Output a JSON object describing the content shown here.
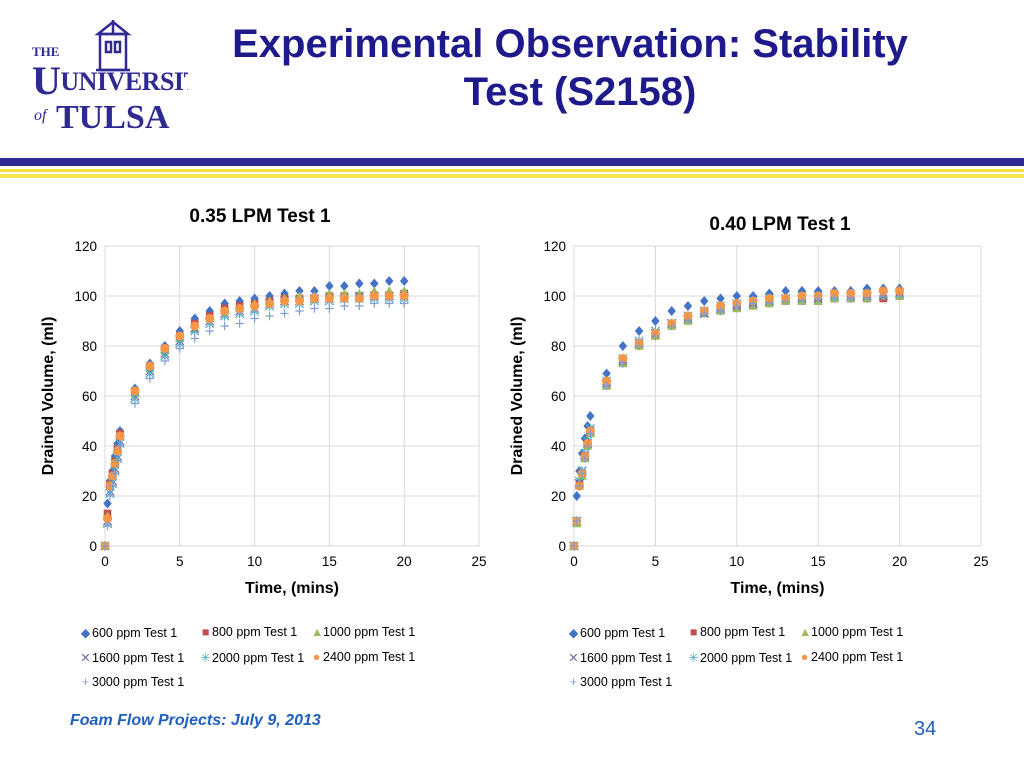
{
  "slide": {
    "title_line1": "Experimental Observation: Stability",
    "title_line2": "Test (S2158)",
    "footer": "Foam Flow Projects: July 9, 2013",
    "page_number": "34",
    "logo_text": {
      "the": "THE",
      "university": "UNIVERSITY",
      "of": "of",
      "tulsa": "TULSA"
    },
    "colors": {
      "title": "#1f1a8c",
      "footer": "#1f5fc0",
      "rule_blue": "#2f2a91",
      "rule_yellow": "#f0e23a"
    }
  },
  "chart_data": [
    {
      "type": "scatter",
      "title": "0.35 LPM Test 1",
      "xlabel": "Time, (mins)",
      "ylabel": "Drained Volume, (ml)",
      "xlim": [
        0,
        25
      ],
      "ylim": [
        0,
        120
      ],
      "xticks": [
        0,
        5,
        10,
        15,
        20,
        25
      ],
      "yticks": [
        0,
        20,
        40,
        60,
        80,
        100,
        120
      ],
      "grid": true,
      "legend_position": "bottom",
      "x": [
        0,
        0.167,
        0.333,
        0.5,
        0.667,
        0.833,
        1,
        2,
        3,
        4,
        5,
        6,
        7,
        8,
        9,
        10,
        11,
        12,
        13,
        14,
        15,
        16,
        17,
        18,
        19,
        20
      ],
      "series": [
        {
          "name": "600 ppm Test 1",
          "marker": "diamond",
          "color": "#4472c4",
          "values": [
            0,
            17,
            26,
            30,
            36,
            41,
            46,
            63,
            73,
            80,
            86,
            91,
            94,
            97,
            98,
            99,
            100,
            101,
            102,
            102,
            104,
            104,
            105,
            105,
            106,
            106
          ]
        },
        {
          "name": "800 ppm Test 1",
          "marker": "square",
          "color": "#c0504d",
          "values": [
            0,
            13,
            25,
            29,
            34,
            39,
            45,
            62,
            72,
            79,
            84,
            89,
            92,
            95,
            96,
            97,
            98,
            99,
            99,
            99,
            100,
            100,
            100,
            100,
            100,
            101
          ]
        },
        {
          "name": "1000 ppm Test 1",
          "marker": "triangle",
          "color": "#9bbb59",
          "values": [
            0,
            12,
            24,
            28,
            33,
            38,
            44,
            61,
            71,
            78,
            83,
            87,
            91,
            94,
            95,
            97,
            98,
            99,
            100,
            100,
            101,
            101,
            101,
            102,
            102,
            102
          ]
        },
        {
          "name": "1600 ppm Test 1",
          "marker": "x",
          "color": "#8064a2",
          "values": [
            0,
            10,
            22,
            26,
            31,
            36,
            42,
            60,
            70,
            77,
            82,
            87,
            90,
            93,
            94,
            95,
            97,
            98,
            98,
            99,
            99,
            99,
            100,
            100,
            100,
            100
          ]
        },
        {
          "name": "2000 ppm Test 1",
          "marker": "star",
          "color": "#4bacc6",
          "values": [
            0,
            9,
            21,
            25,
            30,
            35,
            41,
            59,
            69,
            76,
            81,
            86,
            89,
            92,
            93,
            94,
            96,
            97,
            97,
            98,
            98,
            99,
            99,
            99,
            99,
            99
          ]
        },
        {
          "name": "2400 ppm Test 1",
          "marker": "circle",
          "color": "#f79646",
          "values": [
            0,
            11,
            24,
            28,
            33,
            38,
            44,
            62,
            72,
            79,
            84,
            88,
            91,
            94,
            95,
            96,
            97,
            98,
            98,
            99,
            99,
            99,
            99,
            100,
            100,
            100
          ]
        },
        {
          "name": "3000 ppm Test 1",
          "marker": "plus",
          "color": "#7f9fd4",
          "values": [
            0,
            8,
            20,
            24,
            29,
            34,
            40,
            57,
            67,
            74,
            79,
            83,
            86,
            88,
            89,
            91,
            92,
            93,
            94,
            95,
            95,
            96,
            96,
            97,
            97,
            97
          ]
        }
      ]
    },
    {
      "type": "scatter",
      "title": "0.40 LPM Test 1",
      "xlabel": "Time, (mins)",
      "ylabel": "Drained Volume, (ml)",
      "xlim": [
        0,
        25
      ],
      "ylim": [
        0,
        120
      ],
      "xticks": [
        0,
        5,
        10,
        15,
        20,
        25
      ],
      "yticks": [
        0,
        20,
        40,
        60,
        80,
        100,
        120
      ],
      "grid": true,
      "legend_position": "bottom",
      "x": [
        0,
        0.167,
        0.333,
        0.5,
        0.667,
        0.833,
        1,
        2,
        3,
        4,
        5,
        6,
        7,
        8,
        9,
        10,
        11,
        12,
        13,
        14,
        15,
        16,
        17,
        18,
        19,
        20
      ],
      "series": [
        {
          "name": "600 ppm Test 1",
          "marker": "diamond",
          "color": "#4472c4",
          "values": [
            0,
            20,
            30,
            37,
            43,
            48,
            52,
            69,
            80,
            86,
            90,
            94,
            96,
            98,
            99,
            100,
            100,
            101,
            102,
            102,
            102,
            102,
            102,
            103,
            103,
            103
          ]
        },
        {
          "name": "800 ppm Test 1",
          "marker": "square",
          "color": "#c0504d",
          "values": [
            0,
            10,
            25,
            29,
            36,
            41,
            46,
            65,
            74,
            81,
            85,
            89,
            91,
            94,
            95,
            96,
            97,
            98,
            98,
            98,
            98,
            99,
            99,
            99,
            99,
            100
          ]
        },
        {
          "name": "1000 ppm Test 1",
          "marker": "triangle",
          "color": "#9bbb59",
          "values": [
            0,
            9,
            24,
            28,
            35,
            40,
            45,
            64,
            73,
            80,
            84,
            88,
            90,
            93,
            94,
            95,
            96,
            97,
            98,
            98,
            98,
            99,
            99,
            99,
            100,
            100
          ]
        },
        {
          "name": "1600 ppm Test 1",
          "marker": "x",
          "color": "#8064a2",
          "values": [
            0,
            10,
            25,
            30,
            36,
            41,
            46,
            65,
            74,
            81,
            85,
            89,
            91,
            93,
            95,
            96,
            97,
            98,
            99,
            99,
            99,
            100,
            100,
            100,
            100,
            101
          ]
        },
        {
          "name": "2000 ppm Test 1",
          "marker": "star",
          "color": "#4bacc6",
          "values": [
            0,
            10,
            26,
            30,
            37,
            42,
            47,
            66,
            75,
            82,
            86,
            89,
            92,
            94,
            96,
            97,
            98,
            99,
            99,
            100,
            100,
            100,
            100,
            101,
            101,
            101
          ]
        },
        {
          "name": "2400 ppm Test 1",
          "marker": "circle",
          "color": "#f79646",
          "values": [
            0,
            10,
            24,
            29,
            36,
            41,
            46,
            66,
            75,
            81,
            85,
            89,
            92,
            94,
            96,
            97,
            98,
            99,
            99,
            100,
            100,
            101,
            101,
            101,
            102,
            102
          ]
        },
        {
          "name": "3000 ppm Test 1",
          "marker": "plus",
          "color": "#7f9fd4",
          "values": [
            0,
            10,
            24,
            29,
            35,
            40,
            45,
            64,
            73,
            80,
            84,
            88,
            90,
            93,
            94,
            96,
            97,
            97,
            98,
            98,
            99,
            99,
            99,
            99,
            100,
            100
          ]
        }
      ]
    }
  ]
}
